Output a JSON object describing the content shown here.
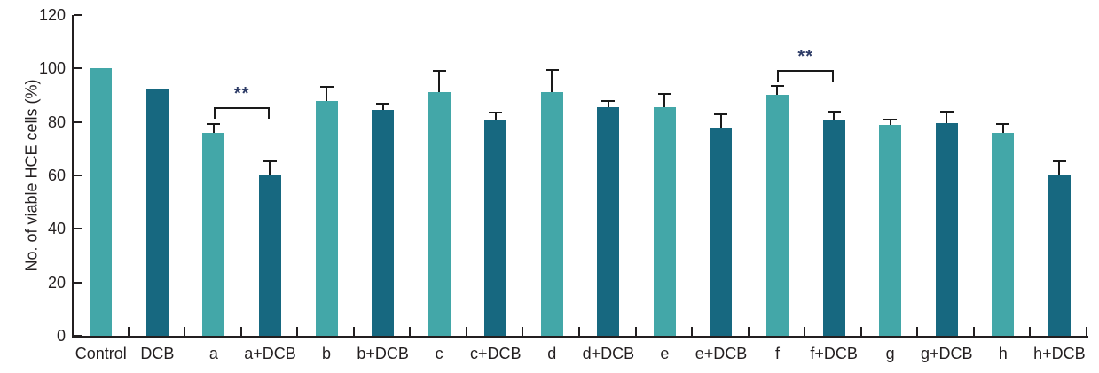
{
  "chart_data": {
    "type": "bar",
    "title": "",
    "xlabel": "",
    "ylabel": "No. of viable HCE cells (%)",
    "ylim": [
      0,
      120
    ],
    "yticks": [
      0,
      20,
      40,
      60,
      80,
      100,
      120
    ],
    "grid": false,
    "legend_position": "none",
    "categories": [
      "Control",
      "DCB",
      "a",
      "a+DCB",
      "b",
      "b+DCB",
      "c",
      "c+DCB",
      "d",
      "d+DCB",
      "e",
      "e+DCB",
      "f",
      "f+DCB",
      "g",
      "g+DCB",
      "h",
      "h+DCB"
    ],
    "values": [
      100,
      92.5,
      76,
      60,
      88,
      84.5,
      91,
      80.5,
      91,
      85.5,
      85.5,
      78,
      90,
      81,
      79,
      79.5,
      76,
      60
    ],
    "errors": [
      0,
      0,
      3,
      5,
      5,
      2,
      7.5,
      2.5,
      8,
      2,
      4.5,
      4.5,
      3,
      2.5,
      1.5,
      4,
      3,
      5
    ],
    "bar_color_keys": [
      "light",
      "dark",
      "light",
      "dark",
      "light",
      "dark",
      "light",
      "dark",
      "light",
      "dark",
      "light",
      "dark",
      "light",
      "dark",
      "light",
      "dark",
      "light",
      "dark"
    ],
    "colors": {
      "light": "#43a7a8",
      "dark": "#176880",
      "axis": "#231f20",
      "error_bar": "#1a1a1a",
      "significance_text": "#2d3b66"
    },
    "annotations": [
      {
        "label": "**",
        "from": "a",
        "to": "a+DCB",
        "y": 85.5
      },
      {
        "label": "**",
        "from": "f",
        "to": "f+DCB",
        "y": 99.5
      }
    ]
  }
}
